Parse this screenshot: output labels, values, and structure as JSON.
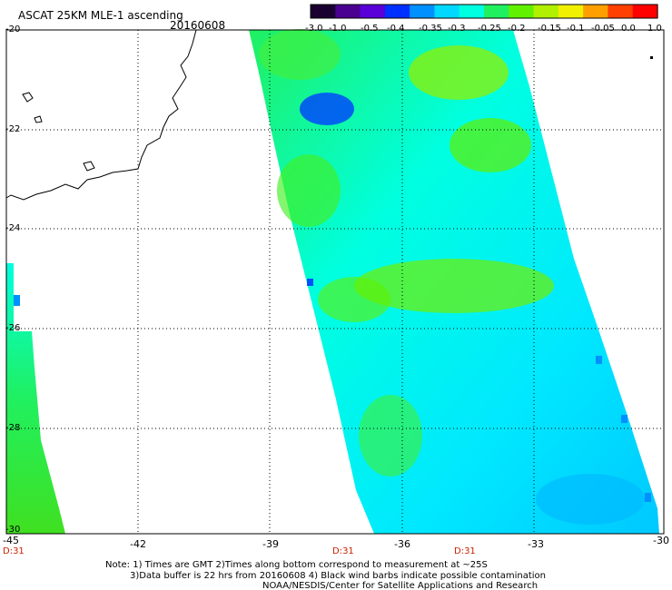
{
  "header": {
    "title": "ASCAT 25KM MLE-1 ascending",
    "date": "20160608"
  },
  "colorbar": {
    "labels": [
      "-3.0",
      "-1.0",
      "-0.5",
      "-0.4",
      "-0.35",
      "-0.3",
      "-0.25",
      "-0.2",
      "-0.15",
      "-0.1",
      "-0.05",
      "0.0",
      "1.0"
    ],
    "colors": [
      "#1a0030",
      "#4a0090",
      "#5a00d8",
      "#0030ff",
      "#0090ff",
      "#00d8ff",
      "#00ffe0",
      "#20f060",
      "#60f000",
      "#b0f000",
      "#f0f000",
      "#ffa000",
      "#ff4000",
      "#ff0000"
    ]
  },
  "map": {
    "lon_labels": [
      "-45",
      "-42",
      "-39",
      "-36",
      "-33",
      "-30"
    ],
    "lat_labels": [
      "-20",
      "-22",
      "-24",
      "-26",
      "-28",
      "-30"
    ],
    "time_labels": [
      "D:31",
      "D:31",
      "D:31"
    ],
    "lon_range": [
      -45,
      -30
    ],
    "lat_range": [
      -30,
      -20
    ]
  },
  "footer": {
    "line1": "Note: 1) Times are GMT 2)Times along bottom correspond to measurement at ~25S",
    "line2": "3)Data buffer is 22 hrs from 20160608 4) Black wind barbs indicate possible contamination",
    "line3": "NOAA/NESDIS/Center for Satellite Applications and Research"
  }
}
